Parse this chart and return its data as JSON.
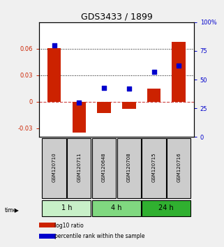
{
  "title": "GDS3433 / 1899",
  "samples": [
    "GSM120710",
    "GSM120711",
    "GSM120648",
    "GSM120708",
    "GSM120715",
    "GSM120716"
  ],
  "log10_ratio": [
    0.061,
    -0.035,
    -0.013,
    -0.008,
    0.015,
    0.068
  ],
  "percentile_rank": [
    0.8,
    0.3,
    0.43,
    0.42,
    0.57,
    0.62
  ],
  "groups": [
    {
      "label": "1 h",
      "samples": [
        0,
        1
      ],
      "color": "#c8f0c8"
    },
    {
      "label": "4 h",
      "samples": [
        2,
        3
      ],
      "color": "#80d880"
    },
    {
      "label": "24 h",
      "samples": [
        4,
        5
      ],
      "color": "#30b030"
    }
  ],
  "ylim_left": [
    -0.04,
    0.09
  ],
  "ylim_right": [
    0.0,
    1.0
  ],
  "yticks_left": [
    -0.03,
    0,
    0.03,
    0.06
  ],
  "ytick_labels_left": [
    "-0.03",
    "0",
    "0.03",
    "0.06"
  ],
  "yticks_right": [
    0,
    0.25,
    0.5,
    0.75,
    1.0
  ],
  "ytick_labels_right": [
    "0",
    "25",
    "50",
    "75",
    "100%"
  ],
  "bar_color": "#cc2200",
  "dot_color": "#0000cc",
  "hline_color": "#cc4444",
  "dotline_values": [
    0.03,
    0.06
  ],
  "dotline_color": "black",
  "title_fontsize": 9,
  "label_fontsize": 6,
  "tick_fontsize": 6,
  "bar_width": 0.55,
  "background_color": "#f0f0f0",
  "plot_bg": "#ffffff",
  "sample_box_color": "#cccccc",
  "legend_fontsize": 5.5
}
